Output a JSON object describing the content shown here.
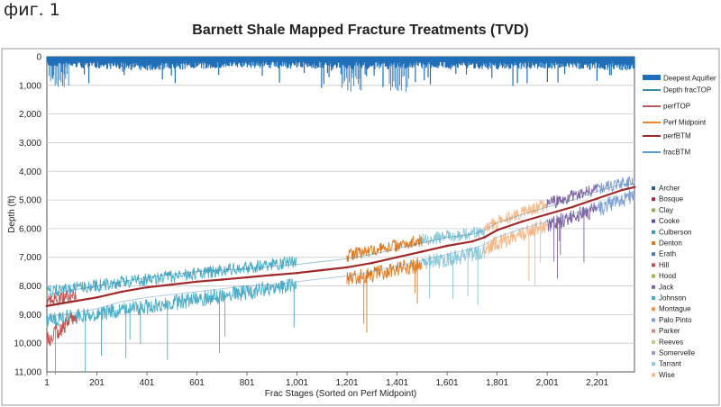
{
  "figure_label": "фиг. 1",
  "chart_data": {
    "type": "line",
    "title": "Barnett Shale Mapped Fracture Treatments (TVD)",
    "xlabel": "Frac Stages (Sorted on Perf Midpoint)",
    "ylabel": "Depth (ft)",
    "xlim": [
      1,
      2350
    ],
    "ylim": [
      0,
      11000
    ],
    "y_inverted": true,
    "grid": "horizontal",
    "x_tick_labels": [
      "1",
      "201",
      "401",
      "601",
      "801",
      "1,001",
      "1,201",
      "1,401",
      "1,601",
      "1,801",
      "2,001",
      "2,201"
    ],
    "x_ticks": [
      1,
      201,
      401,
      601,
      801,
      1001,
      1201,
      1401,
      1601,
      1801,
      2001,
      2201
    ],
    "y_ticks": [
      0,
      1000,
      2000,
      3000,
      4000,
      5000,
      6000,
      7000,
      8000,
      9000,
      10000,
      11000
    ],
    "y_tick_labels": [
      "0",
      "1,000",
      "2,000",
      "3,000",
      "4,000",
      "5,000",
      "6,000",
      "7,000",
      "8,000",
      "9,000",
      "10,000",
      "11,000"
    ],
    "legend_position": "right",
    "series_legend": [
      {
        "name": "Deepest Aquifier",
        "color": "#1f6fb8",
        "style": "bar"
      },
      {
        "name": "Depth fracTOP",
        "color": "#3a8aa8",
        "style": "line"
      },
      {
        "name": "perfTOP",
        "color": "#b85a5a",
        "style": "line"
      },
      {
        "name": "Perf Midpoint",
        "color": "#e8892a",
        "style": "line"
      },
      {
        "name": "perfBTM",
        "color": "#9e2a2a",
        "style": "line"
      },
      {
        "name": "fracBTM",
        "color": "#5b9bd5",
        "style": "line"
      }
    ],
    "county_legend": [
      {
        "name": "Archer",
        "color": "#2f5f8a"
      },
      {
        "name": "Bosque",
        "color": "#a32a4a"
      },
      {
        "name": "Clay",
        "color": "#8fb04a"
      },
      {
        "name": "Cooke",
        "color": "#6a4a9a"
      },
      {
        "name": "Culberson",
        "color": "#2f9aaa"
      },
      {
        "name": "Denton",
        "color": "#e07a20"
      },
      {
        "name": "Erath",
        "color": "#4a7ab0"
      },
      {
        "name": "Hill",
        "color": "#c0504d"
      },
      {
        "name": "Hood",
        "color": "#9bbb59"
      },
      {
        "name": "Jack",
        "color": "#8064a2"
      },
      {
        "name": "Johnson",
        "color": "#4bacc6"
      },
      {
        "name": "Montague",
        "color": "#f79646"
      },
      {
        "name": "Palo Pinto",
        "color": "#7f9fd0"
      },
      {
        "name": "Parker",
        "color": "#d08a8a"
      },
      {
        "name": "Reeves",
        "color": "#b7d08a"
      },
      {
        "name": "Somervelle",
        "color": "#a898c8"
      },
      {
        "name": "Tarrant",
        "color": "#8ac8d8"
      },
      {
        "name": "Wise",
        "color": "#f8b888"
      }
    ],
    "series": [
      {
        "name": "perfBTM",
        "x": [
          1,
          101,
          201,
          301,
          401,
          501,
          601,
          701,
          801,
          901,
          1001,
          1101,
          1201,
          1301,
          1401,
          1501,
          1601,
          1701,
          1751,
          1801,
          1901,
          2001,
          2101,
          2201,
          2301,
          2350
        ],
        "values": [
          8700,
          8550,
          8400,
          8200,
          8050,
          7950,
          7850,
          7780,
          7700,
          7620,
          7550,
          7450,
          7350,
          7200,
          7000,
          6800,
          6600,
          6450,
          6300,
          6050,
          5750,
          5500,
          5250,
          4950,
          4650,
          4550
        ]
      },
      {
        "name": "Depth fracTOP",
        "x": [
          1,
          101,
          201,
          301,
          401,
          501,
          601,
          701,
          801,
          901,
          1001,
          1101,
          1201,
          1301,
          1401,
          1501,
          1601,
          1701,
          1751,
          1801,
          1901,
          2001,
          2101,
          2201,
          2301,
          2350
        ],
        "values": [
          8300,
          8150,
          8000,
          7850,
          7700,
          7600,
          7500,
          7450,
          7400,
          7320,
          7250,
          7150,
          7050,
          6900,
          6700,
          6500,
          6300,
          6200,
          6050,
          5800,
          5500,
          5250,
          5000,
          4700,
          4450,
          4450
        ]
      },
      {
        "name": "fracBTM",
        "x": [
          1,
          101,
          201,
          301,
          401,
          501,
          601,
          701,
          801,
          901,
          1001,
          1101,
          1201,
          1301,
          1401,
          1501,
          1601,
          1701,
          1751,
          1801,
          1901,
          2001,
          2101,
          2201,
          2301,
          2350
        ],
        "values": [
          9100,
          8950,
          8800,
          8550,
          8400,
          8300,
          8200,
          8100,
          8000,
          7950,
          7850,
          7750,
          7650,
          7500,
          7300,
          7100,
          6900,
          6700,
          6550,
          6300,
          6000,
          5750,
          5500,
          5200,
          4850,
          4700
        ]
      }
    ],
    "county_segments": [
      {
        "county": "Johnson",
        "x_range": [
          1,
          1000
        ],
        "top": [
          8300,
          7250
        ],
        "bottom": [
          9100,
          7850
        ]
      },
      {
        "county": "Hill",
        "x_range": [
          1,
          120
        ],
        "top": [
          8600,
          8450
        ],
        "bottom": [
          9800,
          8900
        ]
      },
      {
        "county": "Denton",
        "x_range": [
          1200,
          1500
        ],
        "top": [
          7050,
          6500
        ],
        "bottom": [
          7650,
          7100
        ]
      },
      {
        "county": "Tarrant",
        "x_range": [
          1500,
          1750
        ],
        "top": [
          6500,
          6200
        ],
        "bottom": [
          7100,
          6700
        ]
      },
      {
        "county": "Wise",
        "x_range": [
          1750,
          2000
        ],
        "top": [
          6050,
          5250
        ],
        "bottom": [
          6550,
          5750
        ]
      },
      {
        "county": "Jack",
        "x_range": [
          2000,
          2200
        ],
        "top": [
          5250,
          4700
        ],
        "bottom": [
          5750,
          5200
        ]
      },
      {
        "county": "Palo Pinto",
        "x_range": [
          2200,
          2350
        ],
        "top": [
          4700,
          4450
        ],
        "bottom": [
          5200,
          4700
        ]
      }
    ],
    "aquifer": {
      "name": "Deepest Aquifier",
      "x": [
        1,
        201,
        401,
        601,
        801,
        1001,
        1201,
        1401,
        1601,
        1801,
        2001,
        2201,
        2350
      ],
      "values": [
        250,
        300,
        350,
        320,
        280,
        300,
        330,
        310,
        290,
        320,
        300,
        330,
        350
      ],
      "spikes_x": [
        10,
        1180,
        1370
      ],
      "spikes_to": [
        1100,
        1300,
        1250
      ]
    }
  }
}
